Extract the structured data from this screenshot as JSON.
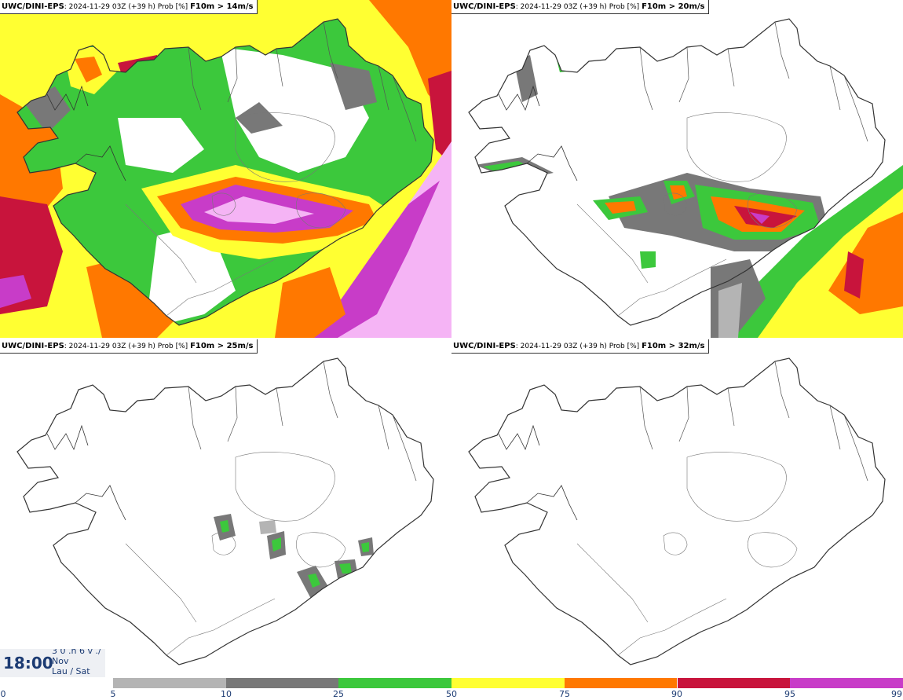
{
  "panels": [
    {
      "source": "UWC/DINI-EPS",
      "meta": "2024-11-29 03Z (+39 h) Prob [%]",
      "threshold": "F10m > 14m/s"
    },
    {
      "source": "UWC/DINI-EPS",
      "meta": "2024-11-29 03Z (+39 h) Prob [%]",
      "threshold": "F10m > 20m/s"
    },
    {
      "source": "UWC/DINI-EPS",
      "meta": "2024-11-29 03Z (+39 h) Prob [%]",
      "threshold": "F10m > 25m/s"
    },
    {
      "source": "UWC/DINI-EPS",
      "meta": "2024-11-29 03Z (+39 h) Prob [%]",
      "threshold": "F10m > 32m/s"
    }
  ],
  "valid_time": {
    "hour": "18:00",
    "line1": "3 0 .n 6 v ./",
    "line2": "Nov",
    "line3": "Lau / Sat"
  },
  "legend": {
    "labels": [
      "0",
      "5",
      "10",
      "25",
      "50",
      "75",
      "90",
      "95",
      "99"
    ],
    "colors": [
      "#b4b4b4",
      "#787878",
      "#3cc83c",
      "#ffff32",
      "#ff7800",
      "#c8143c",
      "#c83cc8",
      "#f5b4f5"
    ]
  },
  "field_colors": {
    "white": "#ffffff",
    "light_gray": "#b4b4b4",
    "dark_gray": "#787878",
    "green": "#3cc83c",
    "yellow": "#ffff32",
    "orange": "#ff7800",
    "crimson": "#c8143c",
    "magenta": "#c83cc8",
    "pink": "#f5b4f5",
    "coast": "#333333"
  }
}
